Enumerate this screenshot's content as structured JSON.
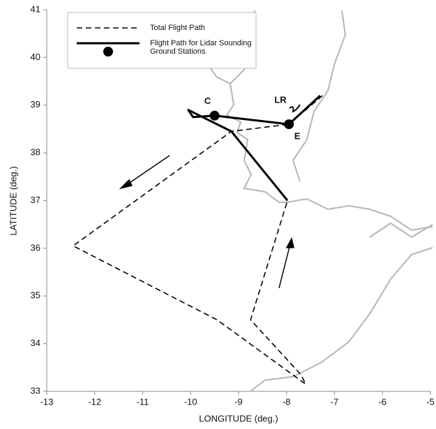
{
  "chart_data": {
    "type": "line",
    "xlabel": "LONGITUDE (deg.)",
    "ylabel": "LATITUDE (deg.)",
    "xlim": [
      -13,
      -5
    ],
    "ylim": [
      33,
      41
    ],
    "xticks": [
      -13,
      -12,
      -11,
      -10,
      -9,
      -8,
      -7,
      -6,
      -5
    ],
    "yticks": [
      33,
      34,
      35,
      36,
      37,
      38,
      39,
      40,
      41
    ],
    "series": [
      {
        "name": "Total Flight Path",
        "color": "#000000",
        "style": "dashed",
        "x": [
          -7.25,
          -7.95,
          -9.15,
          -12.45,
          -9.45,
          -7.6,
          -7.7,
          -8.75,
          -7.98
        ],
        "values": [
          39.2,
          38.6,
          38.45,
          36.05,
          34.5,
          33.15,
          33.35,
          34.5,
          37.0
        ]
      },
      {
        "name": "Flight Path for Lidar Sounding",
        "color": "#000000",
        "style": "solid",
        "x": [
          -7.98,
          -9.15,
          -10.05,
          -9.95,
          -9.5,
          -7.95,
          -7.3
        ],
        "values": [
          37.0,
          38.45,
          38.9,
          38.75,
          38.78,
          38.6,
          39.2
        ]
      },
      {
        "name": "Ground Stations",
        "color": "#000000",
        "style": "marker",
        "x": [
          -9.5,
          -7.95
        ],
        "values": [
          38.78,
          38.6
        ],
        "point_labels": [
          "C",
          "E"
        ]
      }
    ],
    "annotations": [
      "LR"
    ]
  }
}
